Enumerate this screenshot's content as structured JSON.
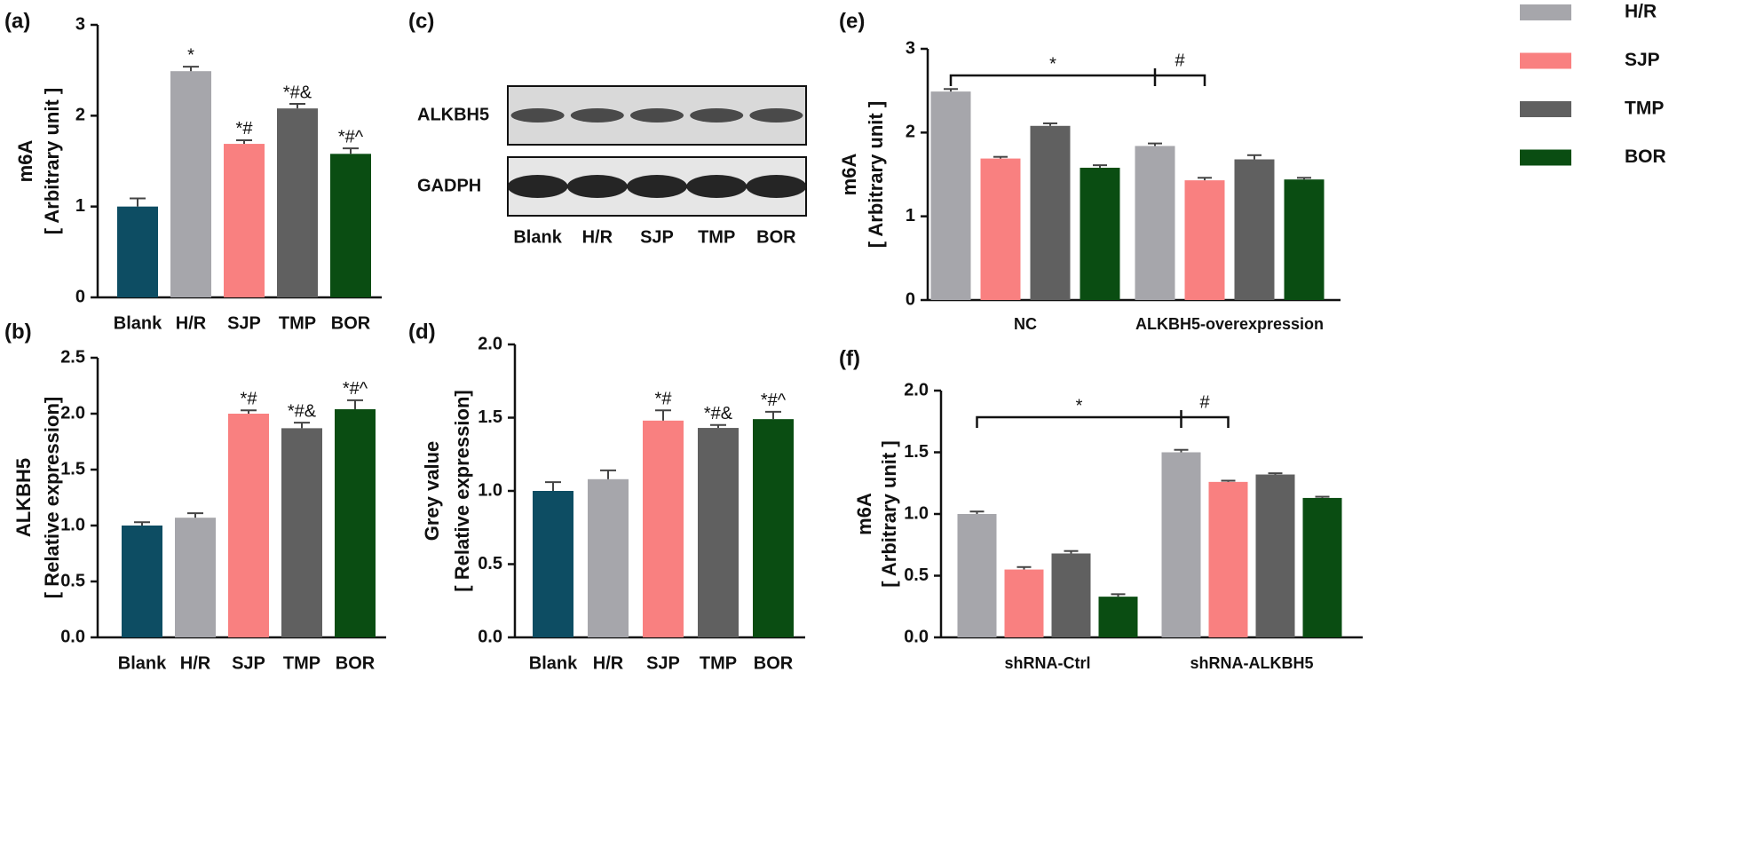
{
  "chart_data": [
    {
      "type": "bar",
      "panel": "(a)",
      "ylabel": [
        "m6A",
        "[ Arbitrary unit ]"
      ],
      "categories": [
        "Blank",
        "H/R",
        "SJP",
        "TMP",
        "BOR"
      ],
      "values": [
        1.0,
        2.49,
        1.69,
        2.08,
        1.58
      ],
      "errors": [
        0.09,
        0.05,
        0.04,
        0.05,
        0.06
      ],
      "colors": [
        "#0d4d63",
        "#a6a6ab",
        "#f98080",
        "#606060",
        "#0a4d12"
      ],
      "annotations": [
        null,
        "*",
        "*#",
        "*#&",
        "*#^"
      ],
      "ylim": [
        0,
        3
      ],
      "yticks": [
        0,
        1,
        2,
        3
      ]
    },
    {
      "type": "bar",
      "panel": "(b)",
      "ylabel": [
        "ALKBH5",
        "[ Relative expression]"
      ],
      "categories": [
        "Blank",
        "H/R",
        "SJP",
        "TMP",
        "BOR"
      ],
      "values": [
        1.0,
        1.07,
        2.0,
        1.87,
        2.04
      ],
      "errors": [
        0.03,
        0.04,
        0.03,
        0.05,
        0.08
      ],
      "colors": [
        "#0d4d63",
        "#a6a6ab",
        "#f98080",
        "#606060",
        "#0a4d12"
      ],
      "annotations": [
        null,
        null,
        "*#",
        "*#&",
        "*#^"
      ],
      "ylim": [
        0,
        2.5
      ],
      "yticks": [
        {
          "value": 0,
          "label": "0.0"
        },
        0.5,
        {
          "value": 1,
          "label": "1.0"
        },
        1.5,
        {
          "value": 2,
          "label": "2.0"
        },
        2.5
      ]
    },
    {
      "type": "blot",
      "panel": "(c)",
      "rows": [
        "ALKBH5",
        "GADPH"
      ],
      "lanes": [
        "Blank",
        "H/R",
        "SJP",
        "TMP",
        "BOR"
      ]
    },
    {
      "type": "bar",
      "panel": "(d)",
      "ylabel": [
        "Grey value",
        "[ Relative expression]"
      ],
      "categories": [
        "Blank",
        "H/R",
        "SJP",
        "TMP",
        "BOR"
      ],
      "values": [
        1.0,
        1.08,
        1.48,
        1.43,
        1.49
      ],
      "errors": [
        0.06,
        0.06,
        0.07,
        0.02,
        0.05
      ],
      "colors": [
        "#0d4d63",
        "#a6a6ab",
        "#f98080",
        "#606060",
        "#0a4d12"
      ],
      "annotations": [
        null,
        null,
        "*#",
        "*#&",
        "*#^"
      ],
      "ylim": [
        0,
        2
      ],
      "yticks": [
        {
          "value": 0,
          "label": "0.0"
        },
        0.5,
        {
          "value": 1,
          "label": "1.0"
        },
        1.5,
        {
          "value": 2,
          "label": "2.0"
        }
      ]
    },
    {
      "type": "grouped_bar",
      "panel": "(e)",
      "ylabel": [
        "m6A",
        "[ Arbitrary unit ]"
      ],
      "categories": [
        "NC",
        "ALKBH5-overexpression"
      ],
      "series": [
        {
          "name": "H/R",
          "color": "#a6a6ab",
          "values": [
            2.49,
            1.84
          ],
          "errors": [
            0.03,
            0.03
          ]
        },
        {
          "name": "SJP",
          "color": "#f98080",
          "values": [
            1.69,
            1.43
          ],
          "errors": [
            0.02,
            0.03
          ]
        },
        {
          "name": "TMP",
          "color": "#606060",
          "values": [
            2.08,
            1.68
          ],
          "errors": [
            0.03,
            0.05
          ]
        },
        {
          "name": "BOR",
          "color": "#0a4d12",
          "values": [
            1.58,
            1.44
          ],
          "errors": [
            0.03,
            0.02
          ]
        }
      ],
      "annotations": [
        "*",
        "#"
      ],
      "legend": "top-right",
      "ylim": [
        0,
        3
      ],
      "yticks": [
        0,
        1,
        2,
        3
      ]
    },
    {
      "type": "grouped_bar",
      "panel": "(f)",
      "ylabel": [
        "m6A",
        "[ Arbitrary unit ]"
      ],
      "categories": [
        "shRNA-Ctrl",
        "shRNA-ALKBH5"
      ],
      "series": [
        {
          "color": "#a6a6ab",
          "values": [
            1.0,
            1.5
          ],
          "errors": [
            0.02,
            0.02
          ]
        },
        {
          "color": "#f98080",
          "values": [
            0.55,
            1.26
          ],
          "errors": [
            0.02,
            0.01
          ]
        },
        {
          "color": "#606060",
          "values": [
            0.68,
            1.32
          ],
          "errors": [
            0.02,
            0.01
          ]
        },
        {
          "color": "#0a4d12",
          "values": [
            0.33,
            1.13
          ],
          "errors": [
            0.02,
            0.01
          ]
        }
      ],
      "annotations": [
        "*",
        "#"
      ],
      "ylim": [
        0,
        2
      ],
      "yticks": [
        {
          "value": 0,
          "label": "0.0"
        },
        0.5,
        {
          "value": 1,
          "label": "1.0"
        },
        1.5,
        {
          "value": 2,
          "label": "2.0"
        }
      ]
    }
  ]
}
